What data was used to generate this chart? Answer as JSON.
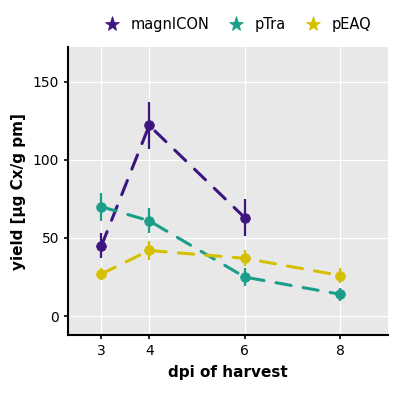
{
  "x": [
    3,
    4,
    6,
    8
  ],
  "magnICON": {
    "y": [
      45,
      122,
      63,
      null
    ],
    "yerr": [
      8,
      15,
      12,
      null
    ]
  },
  "pTra": {
    "y": [
      70,
      61,
      25,
      14
    ],
    "yerr": [
      9,
      8,
      6,
      4
    ]
  },
  "pEAQ": {
    "y": [
      27,
      42,
      37,
      26
    ],
    "yerr": [
      4,
      6,
      5,
      5
    ]
  },
  "colors": {
    "magnICON": "#3d1580",
    "pTra": "#1a9e89",
    "pEAQ": "#d4c000"
  },
  "xlabel": "dpi of harvest",
  "ylabel": "yield [µg Cx/g pm]",
  "ylim": [
    -12,
    172
  ],
  "xlim": [
    2.3,
    9.0
  ],
  "xticks": [
    3,
    4,
    6,
    8
  ],
  "yticks": [
    0,
    50,
    100,
    150
  ],
  "bg_color": "#e8e8e8",
  "marker_size": 7,
  "linewidth": 2.2,
  "elinewidth": 1.6
}
